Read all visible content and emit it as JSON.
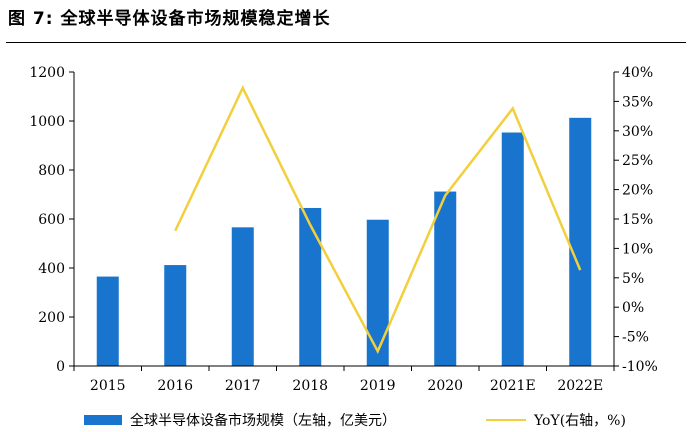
{
  "figure": {
    "number": "图 7:",
    "title": "全球半导体设备市场规模稳定增长"
  },
  "colors": {
    "bar": "#1874cd",
    "line": "#f2cf3c",
    "axis": "#000000"
  },
  "chart_data": {
    "type": "bar+line",
    "categories": [
      "2015",
      "2016",
      "2017",
      "2018",
      "2019",
      "2020",
      "2021E",
      "2022E"
    ],
    "series": [
      {
        "name": "全球半导体设备市场规模（左轴，亿美元）",
        "type": "bar",
        "axis": "left",
        "values": [
          365,
          412,
          566,
          645,
          597,
          712,
          953,
          1013
        ]
      },
      {
        "name": "YoY(右轴，%)",
        "type": "line",
        "axis": "right",
        "values": [
          null,
          13,
          37.3,
          14,
          -7.5,
          19,
          33.8,
          6.3
        ]
      }
    ],
    "y_left": {
      "min": 0,
      "max": 1200,
      "ticks": [
        "0",
        "200",
        "400",
        "600",
        "800",
        "1000",
        "1200"
      ],
      "tick_values": [
        0,
        200,
        400,
        600,
        800,
        1000,
        1200
      ]
    },
    "y_right": {
      "min": -10,
      "max": 40,
      "ticks": [
        "-10%",
        "-5%",
        "0%",
        "5%",
        "10%",
        "15%",
        "20%",
        "25%",
        "30%",
        "35%",
        "40%"
      ],
      "tick_values": [
        -10,
        -5,
        0,
        5,
        10,
        15,
        20,
        25,
        30,
        35,
        40
      ]
    },
    "grid": false,
    "legend_position": "bottom"
  }
}
